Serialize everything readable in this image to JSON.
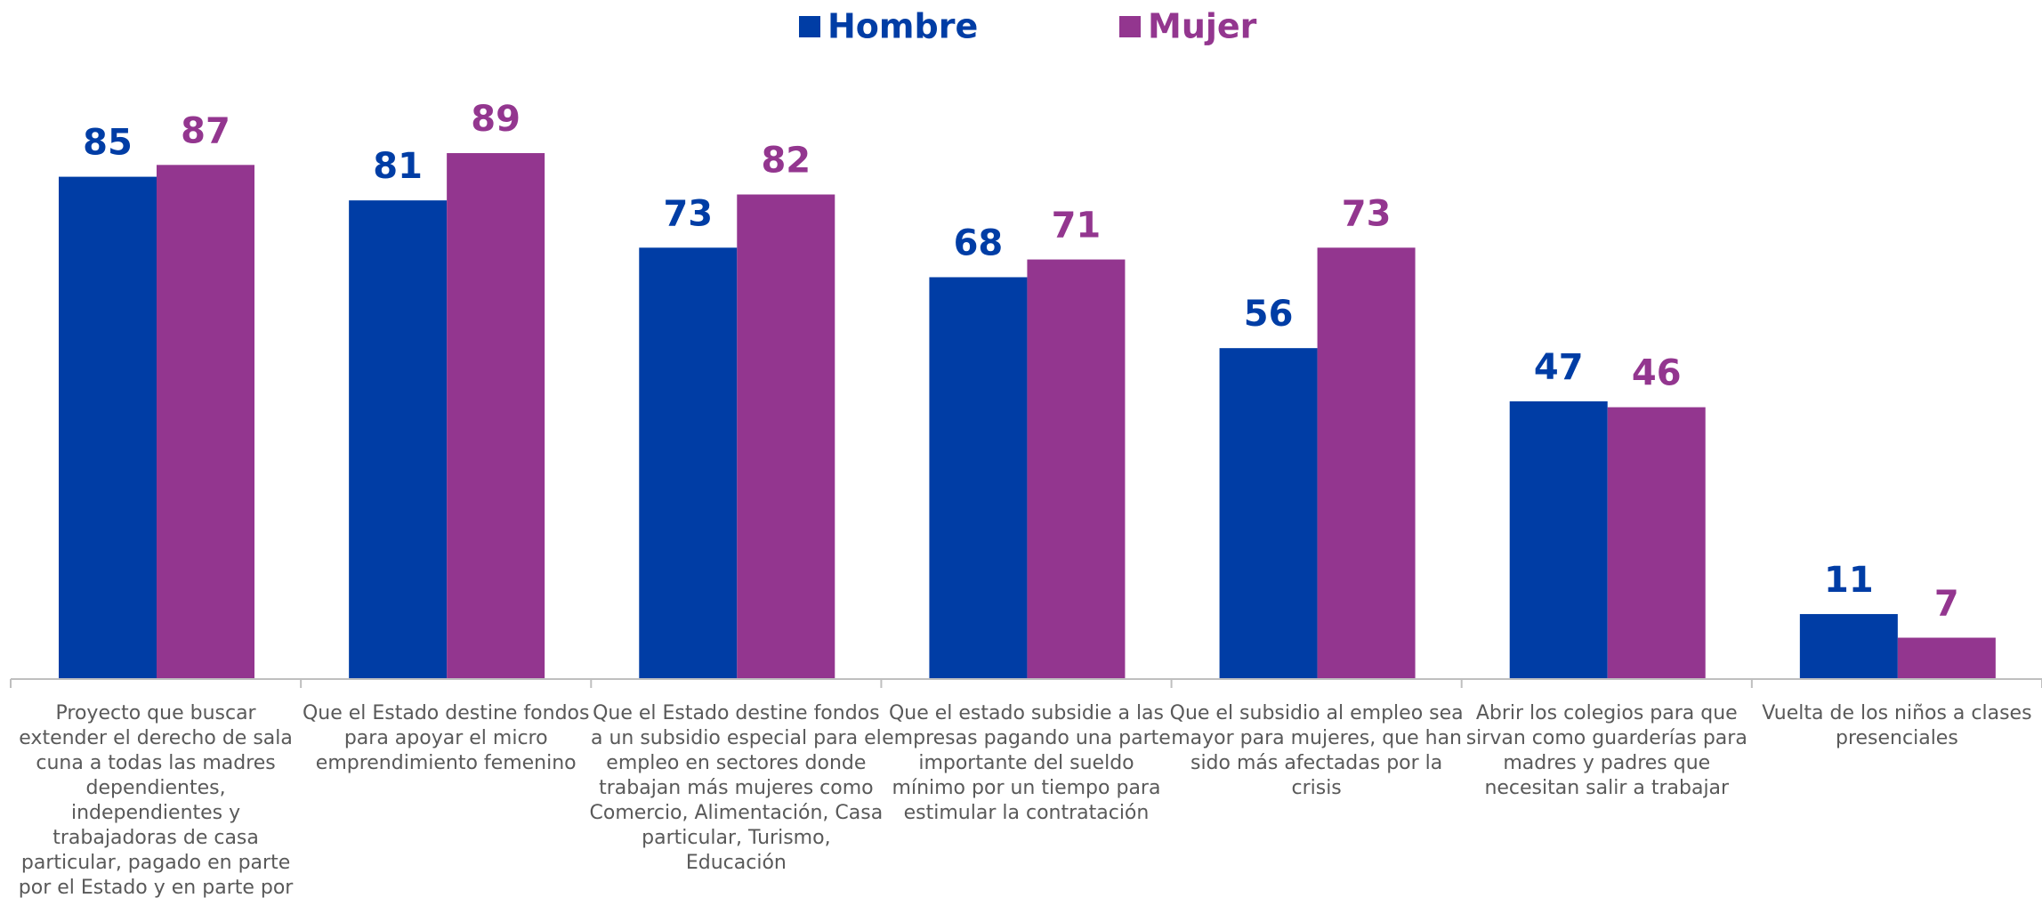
{
  "chart_data": {
    "type": "bar",
    "categories": [
      "Proyecto que buscar extender el derecho de sala cuna a todas las madres dependientes, independientes y trabajadoras de casa particular, pagado en parte por el Estado y en parte por todos los empleadores",
      "Que el Estado destine fondos para apoyar el micro emprendimiento femenino",
      "Que el Estado destine fondos a un subsidio especial para el empleo en sectores donde trabajan más mujeres como Comercio, Alimentación, Casa particular, Turismo, Educación",
      "Que el estado subsidie a las empresas pagando una parte importante del sueldo mínimo por un tiempo para estimular la contratación",
      "Que el subsidio al empleo sea mayor para mujeres, que han sido más afectadas por la crisis",
      "Abrir los colegios para que sirvan como guarderías para madres y padres que necesitan salir a trabajar",
      "Vuelta de los niños a clases presenciales"
    ],
    "series": [
      {
        "name": "Hombre",
        "color": "#003DA5",
        "values": [
          85,
          81,
          73,
          68,
          56,
          47,
          11
        ]
      },
      {
        "name": "Mujer",
        "color": "#93368F",
        "values": [
          87,
          89,
          82,
          71,
          73,
          46,
          7
        ]
      }
    ],
    "ylim": [
      0,
      100
    ],
    "legend": "top"
  }
}
